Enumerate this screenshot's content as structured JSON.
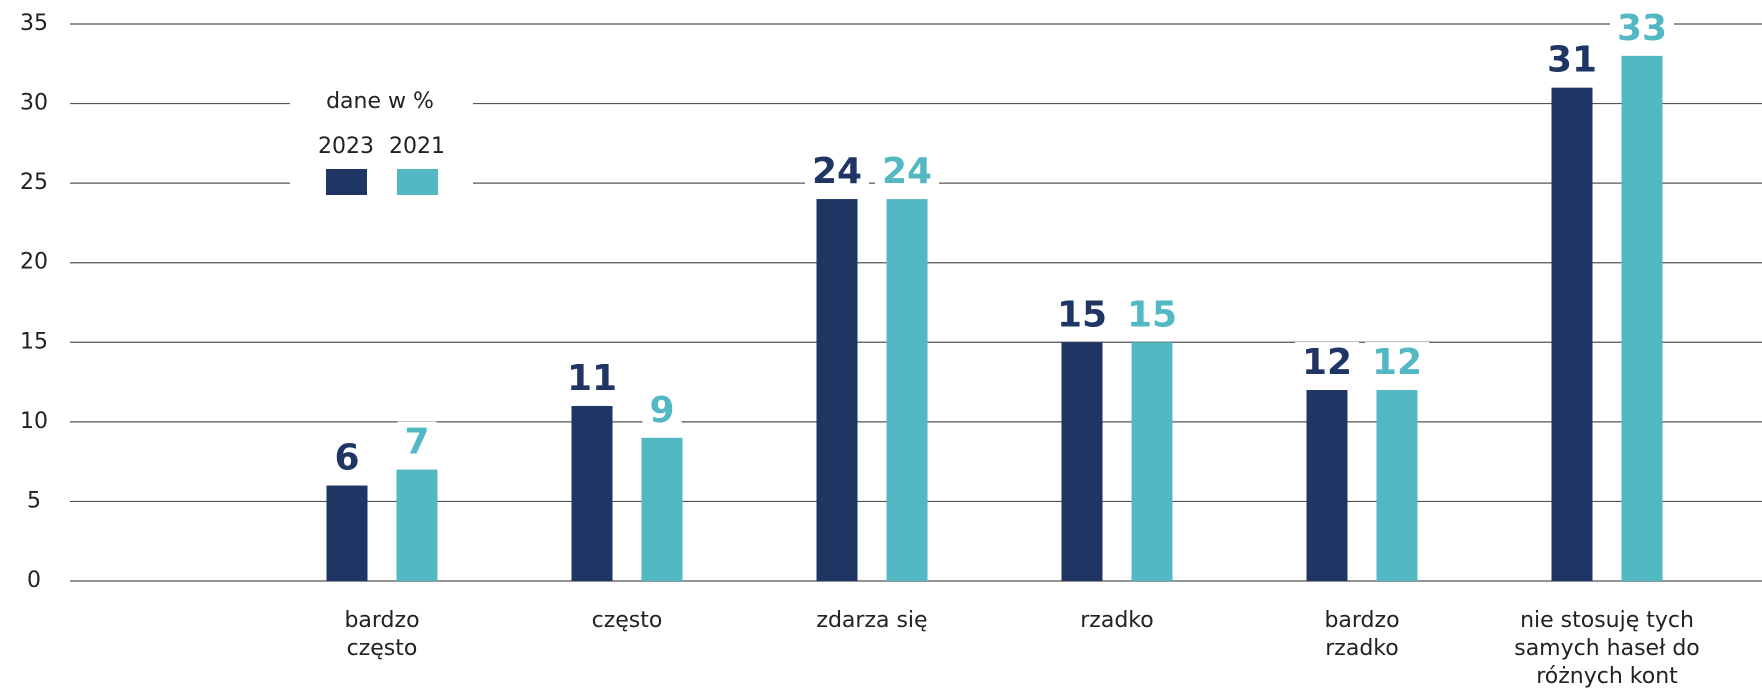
{
  "chart_data": {
    "type": "bar",
    "legend_title": "dane w %",
    "categories": [
      [
        "bardzo",
        "często"
      ],
      [
        "często"
      ],
      [
        "zdarza się"
      ],
      [
        "rzadko"
      ],
      [
        "bardzo",
        "rzadko"
      ],
      [
        "nie stosuję tych",
        "samych haseł do",
        "różnych kont"
      ]
    ],
    "series": [
      {
        "name": "2023",
        "color": "#1f3564",
        "values": [
          6,
          11,
          24,
          15,
          12,
          31
        ]
      },
      {
        "name": "2021",
        "color": "#52b8c4",
        "values": [
          7,
          9,
          24,
          15,
          12,
          33
        ]
      }
    ],
    "ylim": [
      0,
      35
    ],
    "yticks": [
      0,
      5,
      10,
      15,
      20,
      25,
      30,
      35
    ],
    "grid": true
  }
}
